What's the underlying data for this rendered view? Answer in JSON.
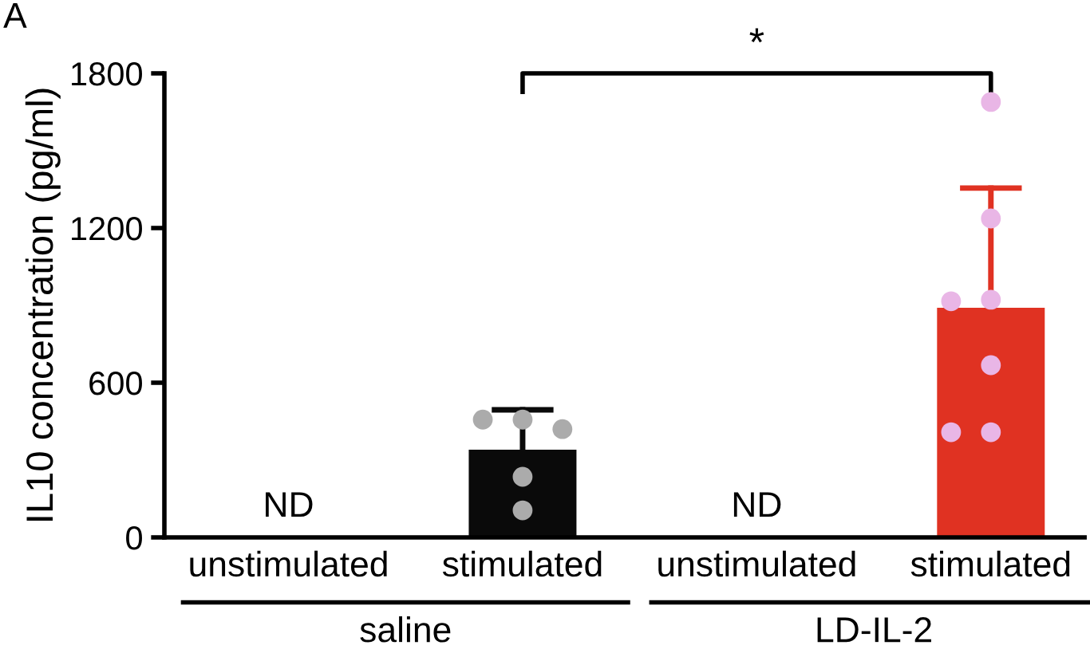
{
  "chart_data": {
    "type": "bar",
    "categories": [
      "unstimulated",
      "stimulated",
      "unstimulated",
      "stimulated"
    ],
    "ylabel": "IL10 concentration (pg/ml)",
    "series": [
      {
        "values": [
          null,
          340,
          null,
          891
        ],
        "colors": [
          "#0a0a0a",
          "#0a0a0a",
          "#e03222",
          "#e03222"
        ],
        "errors": [
          null,
          [
            340,
            495
          ],
          null,
          [
            891,
            1355
          ]
        ],
        "value_labels": [
          "ND",
          null,
          "ND",
          null
        ]
      },
      {
        "type": "scatter",
        "colors": [
          "#ababab",
          "#ababab",
          "#e9b6e6",
          "#e9b6e6"
        ],
        "values": [
          null,
          457,
          null,
          1689
        ]
      },
      {
        "type": "scatter",
        "colors": [
          "#ababab",
          "#ababab",
          "#e9b6e6",
          "#e9b6e6"
        ],
        "values": [
          null,
          457,
          null,
          1237
        ]
      },
      {
        "type": "scatter",
        "colors": [
          "#ababab",
          "#ababab",
          "#e9b6e6",
          "#e9b6e6"
        ],
        "values": [
          null,
          420,
          null,
          922
        ]
      },
      {
        "type": "scatter",
        "colors": [
          "#ababab",
          "#ababab",
          "#e9b6e6",
          "#e9b6e6"
        ],
        "values": [
          null,
          235,
          null,
          916
        ]
      },
      {
        "type": "scatter",
        "colors": [
          "#ababab",
          "#ababab",
          "#e9b6e6",
          "#e9b6e6"
        ],
        "values": [
          null,
          105,
          null,
          668
        ]
      },
      {
        "type": "scatter",
        "colors": [
          "#ababab",
          "#ababab",
          "#e9b6e6",
          "#e9b6e6"
        ],
        "values": [
          null,
          null,
          null,
          408
        ]
      },
      {
        "type": "scatter",
        "colors": [
          "#ababab",
          "#ababab",
          "#e9b6e6",
          "#e9b6e6"
        ],
        "values": [
          null,
          null,
          null,
          408
        ]
      }
    ],
    "ylim": [
      0,
      1800
    ],
    "yticks": [
      0,
      600,
      1200,
      1800
    ],
    "annotations": [
      "A",
      "*",
      "saline",
      "LD-IL-2"
    ],
    "grid": false,
    "legend": false
  }
}
